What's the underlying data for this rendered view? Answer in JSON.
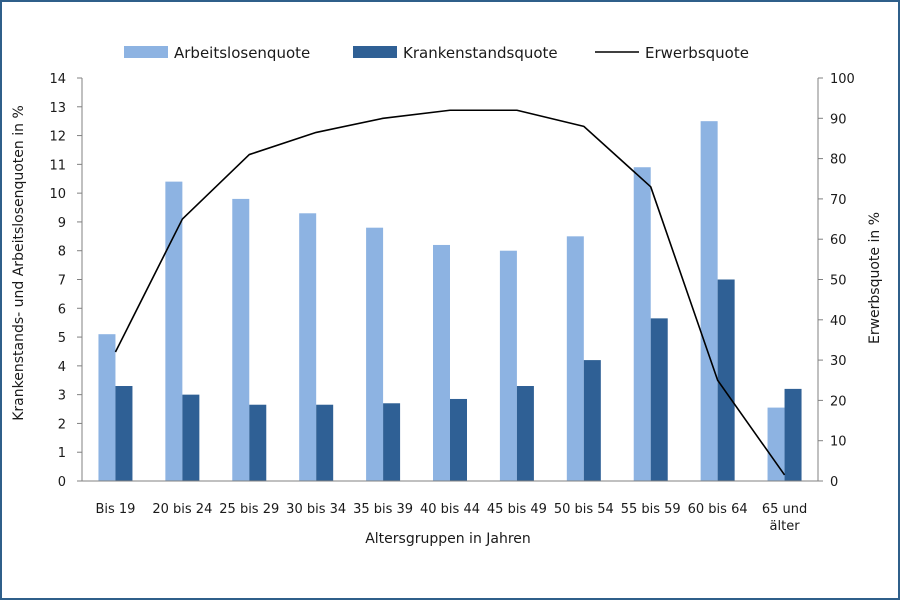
{
  "chart_data": {
    "type": "bar",
    "categories": [
      "Bis 19",
      "20 bis 24",
      "25 bis 29",
      "30 bis 34",
      "35 bis 39",
      "40 bis 44",
      "45 bis 49",
      "50 bis 54",
      "55 bis 59",
      "60 bis 64",
      "65 und älter"
    ],
    "xlabel": "Altersgruppen in Jahren",
    "ylabel": "Krankenstands- und Arbeitslosenquoten in %",
    "y2label": "Erwerbsquote in %",
    "ylim": [
      0,
      14
    ],
    "y2lim": [
      0,
      100
    ],
    "yticks": [
      "0",
      "1",
      "2",
      "3",
      "4",
      "5",
      "6",
      "7",
      "8",
      "9",
      "10",
      "11",
      "12",
      "13",
      "14"
    ],
    "y2ticks": [
      "0",
      "10",
      "20",
      "30",
      "40",
      "50",
      "60",
      "70",
      "80",
      "90",
      "100"
    ],
    "grid": false,
    "legend_position": "top",
    "series": [
      {
        "name": "Arbeitslosenquote",
        "type": "bar",
        "axis": "left",
        "color": "#8db3e2",
        "values": [
          5.1,
          10.4,
          9.8,
          9.3,
          8.8,
          8.2,
          8.0,
          8.5,
          10.9,
          12.5,
          2.55
        ]
      },
      {
        "name": "Krankenstandsquote",
        "type": "bar",
        "axis": "left",
        "color": "#2f6095",
        "values": [
          3.3,
          3.0,
          2.65,
          2.65,
          2.7,
          2.85,
          3.3,
          4.2,
          5.65,
          7.0,
          3.2
        ]
      },
      {
        "name": "Erwerbsquote",
        "type": "line",
        "axis": "right",
        "color": "#000000",
        "values": [
          32,
          65,
          81,
          86.5,
          90,
          92,
          92,
          88,
          73,
          25,
          1.5
        ]
      }
    ]
  }
}
